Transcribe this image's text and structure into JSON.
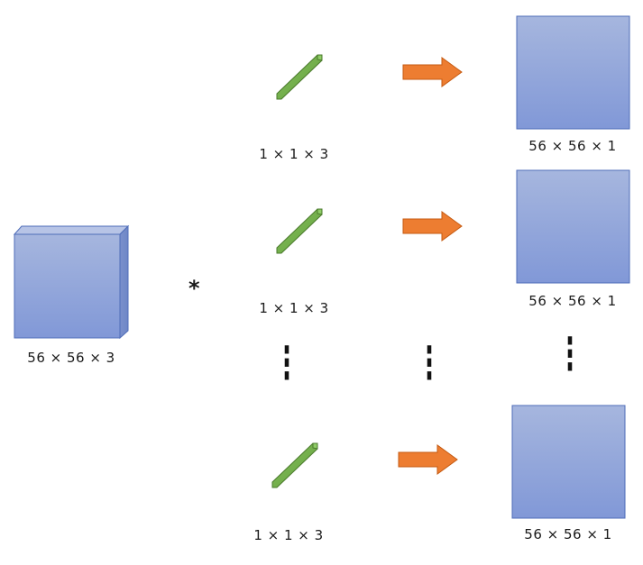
{
  "input": {
    "label": "56 × 56 × 3"
  },
  "operator": "*",
  "filters": [
    {
      "label": "1 × 1 × 3"
    },
    {
      "label": "1 × 1 × 3"
    },
    {
      "label": "1 × 1 × 3"
    }
  ],
  "outputs": [
    {
      "label": "56 × 56 × 1"
    },
    {
      "label": "56 × 56 × 1"
    },
    {
      "label": "56 × 56 × 1"
    }
  ],
  "ellipsis": "⋮",
  "colors": {
    "cube_fill_top": "#a6b6de",
    "cube_fill_bottom": "#8198d7",
    "cube_border": "#4f6db8",
    "filter_fill": "#70ad47",
    "filter_border": "#4a7a2c",
    "arrow_fill": "#ed7d31",
    "arrow_border": "#c55a11"
  }
}
